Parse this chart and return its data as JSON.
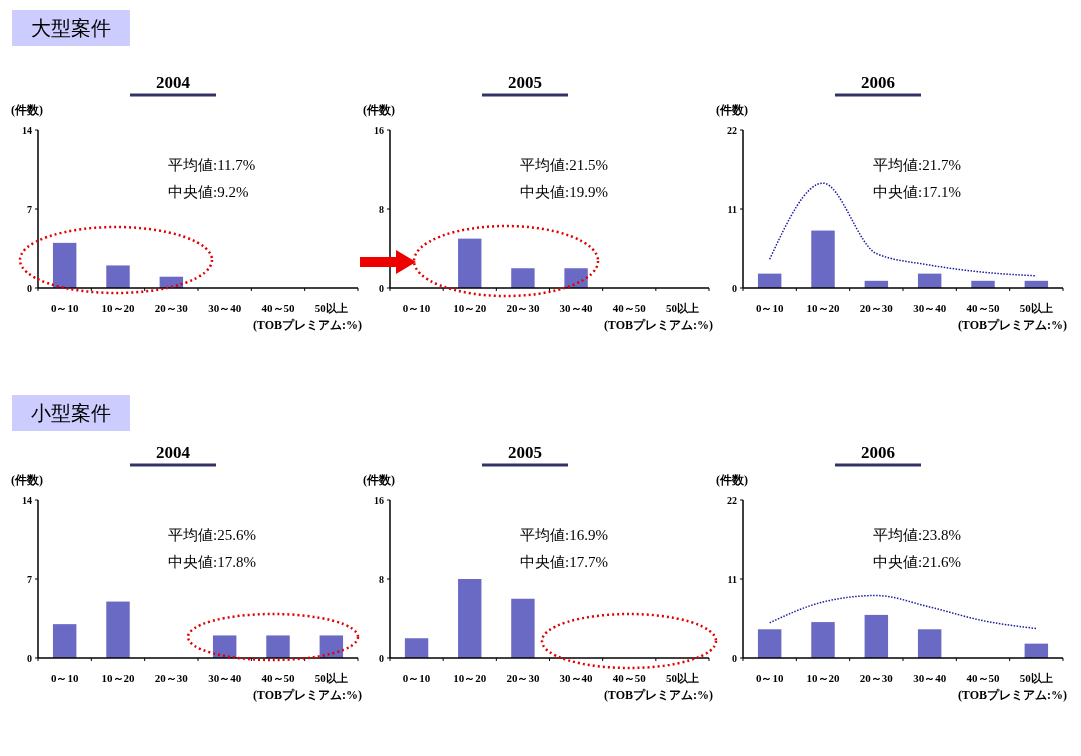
{
  "chart_data": [
    {
      "type": "other",
      "title": "大型案件"
    },
    {
      "type": "bar",
      "title": "2004",
      "ylabel": "(件数)",
      "xlabel": "(TOBプレミアム:%)",
      "categories": [
        "0～10",
        "10～20",
        "20～30",
        "30～40",
        "40～50",
        "50以上"
      ],
      "ylim": [
        0,
        14
      ],
      "yticks": [
        0,
        7,
        14
      ],
      "annotations": [
        "平均値:11.7%",
        "中央値:9.2%"
      ],
      "series": [
        {
          "type": "bar",
          "color": "#6a6ac4",
          "values": [
            4,
            2,
            1,
            0,
            0,
            0
          ]
        }
      ]
    },
    {
      "type": "bar",
      "title": "2005",
      "ylabel": "(件数)",
      "xlabel": "(TOBプレミアム:%)",
      "categories": [
        "0～10",
        "10～20",
        "20～30",
        "30～40",
        "40～50",
        "50以上"
      ],
      "ylim": [
        0,
        16
      ],
      "yticks": [
        0,
        8,
        16
      ],
      "annotations": [
        "平均値:21.5%",
        "中央値:19.9%"
      ],
      "series": [
        {
          "type": "bar",
          "color": "#6a6ac4",
          "values": [
            0,
            5,
            2,
            2,
            0,
            0
          ]
        }
      ]
    },
    {
      "type": "bar",
      "title": "2006",
      "ylabel": "(件数)",
      "xlabel": "(TOBプレミアム:%)",
      "categories": [
        "0～10",
        "10～20",
        "20～30",
        "30～40",
        "40～50",
        "50以上"
      ],
      "ylim": [
        0,
        22
      ],
      "yticks": [
        0,
        11,
        22
      ],
      "annotations": [
        "平均値:21.7%",
        "中央値:17.1%"
      ],
      "line_style": "dotted",
      "series": [
        {
          "type": "bar",
          "color": "#6a6ac4",
          "values": [
            2,
            8,
            1,
            2,
            1,
            1
          ]
        },
        {
          "type": "line",
          "color": "#1a1aa0",
          "values": [
            4.0,
            14.6,
            4.8,
            3.2,
            2.2,
            1.7
          ]
        }
      ]
    },
    {
      "type": "other",
      "title": "小型案件"
    },
    {
      "type": "bar",
      "title": "2004",
      "ylabel": "(件数)",
      "xlabel": "(TOBプレミアム:%)",
      "categories": [
        "0～10",
        "10～20",
        "20～30",
        "30～40",
        "40～50",
        "50以上"
      ],
      "ylim": [
        0,
        14
      ],
      "yticks": [
        0,
        7,
        14
      ],
      "annotations": [
        "平均値:25.6%",
        "中央値:17.8%"
      ],
      "series": [
        {
          "type": "bar",
          "color": "#6a6ac4",
          "values": [
            3,
            5,
            0,
            2,
            2,
            2
          ]
        }
      ]
    },
    {
      "type": "bar",
      "title": "2005",
      "ylabel": "(件数)",
      "xlabel": "(TOBプレミアム:%)",
      "categories": [
        "0～10",
        "10～20",
        "20～30",
        "30～40",
        "40～50",
        "50以上"
      ],
      "ylim": [
        0,
        16
      ],
      "yticks": [
        0,
        8,
        16
      ],
      "annotations": [
        "平均値:16.9%",
        "中央値:17.7%"
      ],
      "series": [
        {
          "type": "bar",
          "color": "#6a6ac4",
          "values": [
            2,
            8,
            6,
            0,
            0,
            0
          ]
        }
      ]
    },
    {
      "type": "bar",
      "title": "2006",
      "ylabel": "(件数)",
      "xlabel": "(TOBプレミアム:%)",
      "categories": [
        "0～10",
        "10～20",
        "20～30",
        "30～40",
        "40～50",
        "50以上"
      ],
      "ylim": [
        0,
        22
      ],
      "yticks": [
        0,
        11,
        22
      ],
      "annotations": [
        "平均値:23.8%",
        "中央値:21.6%"
      ],
      "line_style": "dotted",
      "series": [
        {
          "type": "bar",
          "color": "#6a6ac4",
          "values": [
            4,
            5,
            6,
            4,
            0,
            2
          ]
        },
        {
          "type": "line",
          "color": "#1a1aa0",
          "values": [
            4.9,
            7.8,
            8.7,
            7.1,
            5.2,
            4.1
          ]
        }
      ]
    }
  ]
}
